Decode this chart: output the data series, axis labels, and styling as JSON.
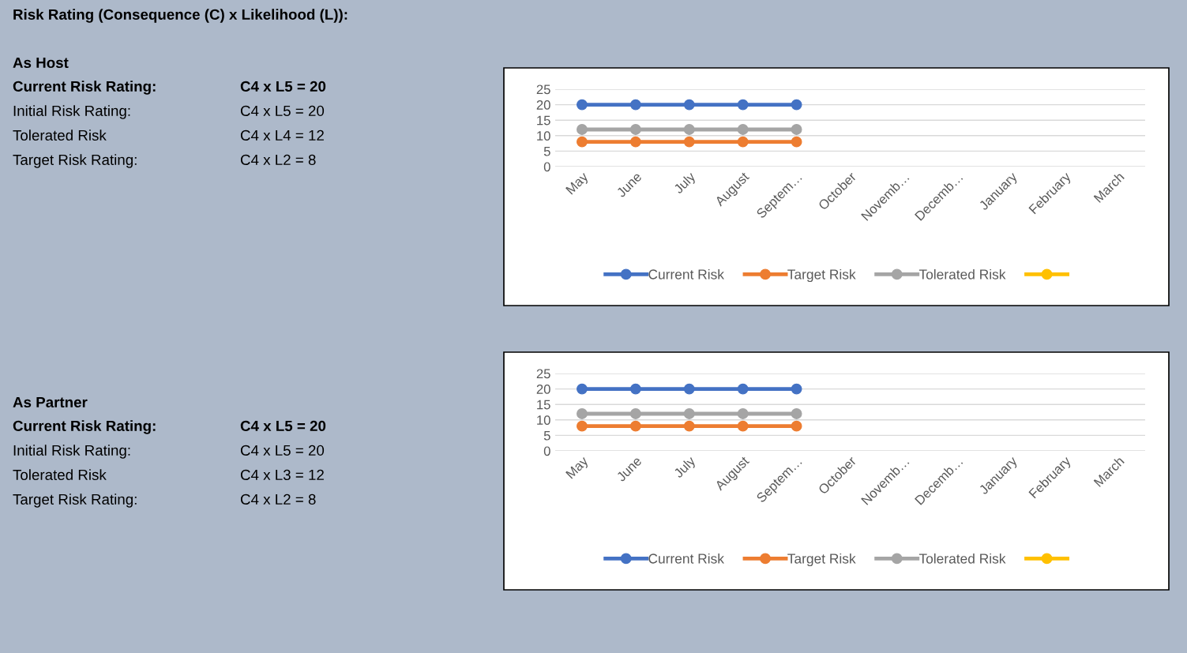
{
  "chart_data": [
    {
      "type": "other",
      "title": "Risk Rating (Consequence (C) x Likelihood (L)):",
      "subtitle": "As Host",
      "annotations": [
        "Current Risk Rating:",
        "C4 x L5 = 20",
        "Initial Risk Rating:",
        "C4 x L5 = 20",
        "Tolerated Risk",
        "C4 x L4 = 12",
        "Target Risk Rating:",
        "C4 x L2 = 8"
      ]
    },
    {
      "type": "line",
      "categories": [
        "May",
        "June",
        "July",
        "August",
        "Septem…",
        "October",
        "Novemb…",
        "Decemb…",
        "January",
        "February",
        "March"
      ],
      "series": [
        {
          "name": "Current Risk",
          "color": "#4472c4",
          "values": [
            20,
            20,
            20,
            20,
            20,
            null,
            null,
            null,
            null,
            null,
            null
          ]
        },
        {
          "name": "Target Risk",
          "color": "#ed7d31",
          "values": [
            8,
            8,
            8,
            8,
            8,
            null,
            null,
            null,
            null,
            null,
            null
          ]
        },
        {
          "name": "Tolerated Risk",
          "color": "#a5a5a5",
          "values": [
            12,
            12,
            12,
            12,
            12,
            null,
            null,
            null,
            null,
            null,
            null
          ]
        },
        {
          "color": "#ffc000",
          "values": [
            null,
            null,
            null,
            null,
            null,
            null,
            null,
            null,
            null,
            null,
            null
          ]
        }
      ],
      "ylim": [
        0,
        25
      ],
      "yticks": [
        0,
        5,
        10,
        15,
        20,
        25
      ],
      "grid": "y",
      "legend": "bottom",
      "marker": "circle",
      "line_style": "solid"
    },
    {
      "type": "other",
      "subtitle": "As Partner",
      "annotations": [
        "Current Risk Rating:",
        "C4 x L5 = 20",
        "Initial Risk Rating:",
        "C4 x L5 = 20",
        "Tolerated Risk",
        "C4 x L3 = 12",
        "Target Risk Rating:",
        "C4 x L2 = 8"
      ]
    },
    {
      "type": "line",
      "categories": [
        "May",
        "June",
        "July",
        "August",
        "Septem…",
        "October",
        "Novemb…",
        "Decemb…",
        "January",
        "February",
        "March"
      ],
      "series": [
        {
          "name": "Current Risk",
          "color": "#4472c4",
          "values": [
            20,
            20,
            20,
            20,
            20,
            null,
            null,
            null,
            null,
            null,
            null
          ]
        },
        {
          "name": "Target Risk",
          "color": "#ed7d31",
          "values": [
            8,
            8,
            8,
            8,
            8,
            null,
            null,
            null,
            null,
            null,
            null
          ]
        },
        {
          "name": "Tolerated Risk",
          "color": "#a5a5a5",
          "values": [
            12,
            12,
            12,
            12,
            12,
            null,
            null,
            null,
            null,
            null,
            null
          ]
        },
        {
          "color": "#ffc000",
          "values": [
            null,
            null,
            null,
            null,
            null,
            null,
            null,
            null,
            null,
            null,
            null
          ]
        }
      ],
      "ylim": [
        0,
        25
      ],
      "yticks": [
        0,
        5,
        10,
        15,
        20,
        25
      ],
      "grid": "y",
      "legend": "bottom",
      "marker": "circle",
      "line_style": "solid"
    }
  ]
}
